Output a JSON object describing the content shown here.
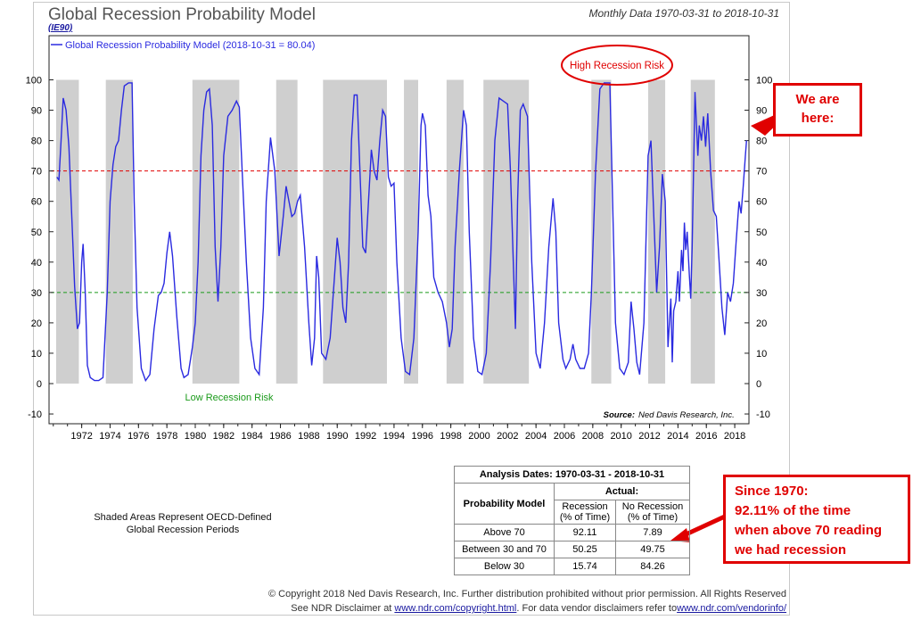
{
  "header": {
    "title": "Global Recession Probability Model",
    "code": "(IE90)",
    "subtitle": "Monthly Data 1970-03-31 to 2018-10-31"
  },
  "chart_data": {
    "type": "line",
    "legend_label": "Global Recession Probability Model (2018-10-31 = 80.04)",
    "legend_position": "top-left",
    "grid": false,
    "x_range": [
      1969.7,
      2019.0
    ],
    "x_ticks": [
      "1972",
      "1974",
      "1976",
      "1978",
      "1980",
      "1982",
      "1984",
      "1986",
      "1988",
      "1990",
      "1992",
      "1994",
      "1996",
      "1998",
      "2000",
      "2002",
      "2004",
      "2006",
      "2008",
      "2010",
      "2012",
      "2014",
      "2016",
      "2018"
    ],
    "y_range": [
      -12,
      102
    ],
    "y_ticks": [
      "-10",
      "0",
      "10",
      "20",
      "30",
      "40",
      "50",
      "60",
      "70",
      "80",
      "90",
      "100"
    ],
    "reference_lines": [
      {
        "value": 70,
        "color": "#e00000",
        "style": "dashed"
      },
      {
        "value": 30,
        "color": "#1a9a1a",
        "style": "dashed"
      }
    ],
    "shaded_periods": [
      [
        1970.2,
        1971.8
      ],
      [
        1973.7,
        1975.6
      ],
      [
        1979.8,
        1983.1
      ],
      [
        1985.7,
        1987.2
      ],
      [
        1989.0,
        1993.5
      ],
      [
        1994.7,
        1995.7
      ],
      [
        1997.7,
        1998.9
      ],
      [
        2000.3,
        2003.5
      ],
      [
        2007.9,
        2009.3
      ],
      [
        2011.9,
        2013.1
      ],
      [
        2014.9,
        2016.6
      ]
    ],
    "annotations": {
      "high_risk": "High Recession Risk",
      "low_risk": "Low Recession Risk",
      "source_label": "Source:",
      "source_text": "Ned Davis Research, Inc."
    },
    "series": [
      {
        "name": "Global Recession Probability Model",
        "color": "#2a2ae0",
        "points": [
          [
            1970.25,
            68
          ],
          [
            1970.4,
            67
          ],
          [
            1970.55,
            80
          ],
          [
            1970.7,
            94
          ],
          [
            1970.9,
            90
          ],
          [
            1971.1,
            78
          ],
          [
            1971.3,
            55
          ],
          [
            1971.5,
            32
          ],
          [
            1971.7,
            18
          ],
          [
            1971.85,
            20
          ],
          [
            1972.0,
            40
          ],
          [
            1972.1,
            46
          ],
          [
            1972.25,
            30
          ],
          [
            1972.4,
            6
          ],
          [
            1972.6,
            2
          ],
          [
            1972.9,
            1
          ],
          [
            1973.2,
            1
          ],
          [
            1973.5,
            2
          ],
          [
            1973.8,
            30
          ],
          [
            1974.0,
            60
          ],
          [
            1974.2,
            72
          ],
          [
            1974.4,
            78
          ],
          [
            1974.6,
            80
          ],
          [
            1974.8,
            90
          ],
          [
            1975.0,
            98
          ],
          [
            1975.3,
            99
          ],
          [
            1975.55,
            99
          ],
          [
            1975.7,
            60
          ],
          [
            1975.9,
            25
          ],
          [
            1976.2,
            5
          ],
          [
            1976.5,
            1
          ],
          [
            1976.8,
            3
          ],
          [
            1977.1,
            18
          ],
          [
            1977.4,
            29
          ],
          [
            1977.6,
            30
          ],
          [
            1977.8,
            33
          ],
          [
            1978.0,
            43
          ],
          [
            1978.2,
            50
          ],
          [
            1978.4,
            42
          ],
          [
            1978.7,
            22
          ],
          [
            1979.0,
            5
          ],
          [
            1979.2,
            2
          ],
          [
            1979.5,
            3
          ],
          [
            1979.8,
            12
          ],
          [
            1980.0,
            20
          ],
          [
            1980.2,
            40
          ],
          [
            1980.4,
            75
          ],
          [
            1980.6,
            90
          ],
          [
            1980.8,
            96
          ],
          [
            1981.0,
            97
          ],
          [
            1981.2,
            85
          ],
          [
            1981.4,
            45
          ],
          [
            1981.6,
            27
          ],
          [
            1981.8,
            45
          ],
          [
            1982.0,
            75
          ],
          [
            1982.3,
            88
          ],
          [
            1982.6,
            90
          ],
          [
            1982.9,
            93
          ],
          [
            1983.1,
            91
          ],
          [
            1983.3,
            70
          ],
          [
            1983.6,
            40
          ],
          [
            1983.9,
            15
          ],
          [
            1984.2,
            5
          ],
          [
            1984.5,
            3
          ],
          [
            1984.8,
            25
          ],
          [
            1985.0,
            60
          ],
          [
            1985.3,
            81
          ],
          [
            1985.6,
            70
          ],
          [
            1985.9,
            42
          ],
          [
            1986.2,
            55
          ],
          [
            1986.4,
            65
          ],
          [
            1986.6,
            60
          ],
          [
            1986.8,
            55
          ],
          [
            1987.0,
            56
          ],
          [
            1987.2,
            60
          ],
          [
            1987.4,
            62
          ],
          [
            1987.7,
            45
          ],
          [
            1988.0,
            20
          ],
          [
            1988.2,
            6
          ],
          [
            1988.4,
            15
          ],
          [
            1988.55,
            42
          ],
          [
            1988.7,
            35
          ],
          [
            1988.9,
            10
          ],
          [
            1989.2,
            8
          ],
          [
            1989.5,
            15
          ],
          [
            1989.8,
            35
          ],
          [
            1990.0,
            48
          ],
          [
            1990.2,
            40
          ],
          [
            1990.4,
            25
          ],
          [
            1990.6,
            20
          ],
          [
            1990.8,
            40
          ],
          [
            1991.0,
            80
          ],
          [
            1991.2,
            95
          ],
          [
            1991.4,
            95
          ],
          [
            1991.6,
            70
          ],
          [
            1991.8,
            45
          ],
          [
            1992.0,
            43
          ],
          [
            1992.2,
            60
          ],
          [
            1992.4,
            77
          ],
          [
            1992.6,
            70
          ],
          [
            1992.8,
            67
          ],
          [
            1993.0,
            80
          ],
          [
            1993.2,
            90
          ],
          [
            1993.4,
            88
          ],
          [
            1993.6,
            68
          ],
          [
            1993.8,
            65
          ],
          [
            1994.0,
            66
          ],
          [
            1994.2,
            40
          ],
          [
            1994.5,
            15
          ],
          [
            1994.8,
            4
          ],
          [
            1995.1,
            3
          ],
          [
            1995.4,
            15
          ],
          [
            1995.7,
            50
          ],
          [
            1995.9,
            85
          ],
          [
            1996.0,
            89
          ],
          [
            1996.2,
            85
          ],
          [
            1996.4,
            62
          ],
          [
            1996.6,
            55
          ],
          [
            1996.8,
            35
          ],
          [
            1997.1,
            30
          ],
          [
            1997.4,
            27
          ],
          [
            1997.7,
            20
          ],
          [
            1997.9,
            12
          ],
          [
            1998.1,
            18
          ],
          [
            1998.3,
            45
          ],
          [
            1998.6,
            70
          ],
          [
            1998.9,
            90
          ],
          [
            1999.1,
            85
          ],
          [
            1999.3,
            50
          ],
          [
            1999.6,
            15
          ],
          [
            1999.9,
            4
          ],
          [
            2000.2,
            3
          ],
          [
            2000.5,
            10
          ],
          [
            2000.8,
            40
          ],
          [
            2001.1,
            80
          ],
          [
            2001.4,
            94
          ],
          [
            2001.7,
            93
          ],
          [
            2002.0,
            92
          ],
          [
            2002.2,
            70
          ],
          [
            2002.4,
            40
          ],
          [
            2002.55,
            18
          ],
          [
            2002.7,
            60
          ],
          [
            2002.9,
            90
          ],
          [
            2003.1,
            92
          ],
          [
            2003.4,
            88
          ],
          [
            2003.7,
            40
          ],
          [
            2004.0,
            10
          ],
          [
            2004.3,
            5
          ],
          [
            2004.6,
            20
          ],
          [
            2004.9,
            45
          ],
          [
            2005.2,
            61
          ],
          [
            2005.4,
            50
          ],
          [
            2005.6,
            20
          ],
          [
            2005.9,
            8
          ],
          [
            2006.1,
            5
          ],
          [
            2006.4,
            8
          ],
          [
            2006.6,
            13
          ],
          [
            2006.8,
            8
          ],
          [
            2007.1,
            5
          ],
          [
            2007.4,
            5
          ],
          [
            2007.7,
            10
          ],
          [
            2007.9,
            30
          ],
          [
            2008.2,
            70
          ],
          [
            2008.5,
            97
          ],
          [
            2008.8,
            99
          ],
          [
            2009.0,
            99
          ],
          [
            2009.2,
            99
          ],
          [
            2009.4,
            60
          ],
          [
            2009.6,
            20
          ],
          [
            2009.9,
            5
          ],
          [
            2010.2,
            3
          ],
          [
            2010.5,
            7
          ],
          [
            2010.7,
            27
          ],
          [
            2010.9,
            18
          ],
          [
            2011.1,
            7
          ],
          [
            2011.3,
            3
          ],
          [
            2011.6,
            20
          ],
          [
            2011.9,
            75
          ],
          [
            2012.1,
            80
          ],
          [
            2012.3,
            55
          ],
          [
            2012.5,
            30
          ],
          [
            2012.7,
            45
          ],
          [
            2012.9,
            69
          ],
          [
            2013.1,
            60
          ],
          [
            2013.3,
            12
          ],
          [
            2013.5,
            28
          ],
          [
            2013.6,
            7
          ],
          [
            2013.7,
            24
          ],
          [
            2013.85,
            27
          ],
          [
            2014.0,
            37
          ],
          [
            2014.1,
            27
          ],
          [
            2014.25,
            44
          ],
          [
            2014.35,
            37
          ],
          [
            2014.45,
            53
          ],
          [
            2014.55,
            44
          ],
          [
            2014.65,
            50
          ],
          [
            2014.8,
            36
          ],
          [
            2014.9,
            28
          ],
          [
            2015.0,
            45
          ],
          [
            2015.2,
            96
          ],
          [
            2015.4,
            75
          ],
          [
            2015.5,
            85
          ],
          [
            2015.65,
            80
          ],
          [
            2015.8,
            88
          ],
          [
            2015.95,
            78
          ],
          [
            2016.1,
            89
          ],
          [
            2016.3,
            70
          ],
          [
            2016.5,
            57
          ],
          [
            2016.7,
            55
          ],
          [
            2016.9,
            40
          ],
          [
            2017.1,
            25
          ],
          [
            2017.3,
            16
          ],
          [
            2017.5,
            30
          ],
          [
            2017.7,
            27
          ],
          [
            2017.9,
            33
          ],
          [
            2018.1,
            47
          ],
          [
            2018.3,
            60
          ],
          [
            2018.45,
            56
          ],
          [
            2018.6,
            65
          ],
          [
            2018.75,
            75
          ],
          [
            2018.83,
            80.04
          ]
        ]
      }
    ]
  },
  "caption": {
    "line1": "Shaded Areas Represent OECD-Defined",
    "line2": "Global Recession Periods"
  },
  "analysis_table": {
    "title": "Analysis Dates: 1970-03-31 - 2018-10-31",
    "actual_header": "Actual:",
    "row_header": "Probability Model",
    "col1_header": "Recession (% of Time)",
    "col2_header": "No Recession (% of Time)",
    "rows": [
      {
        "label": "Above 70",
        "recession": "92.11",
        "no_recession": "7.89"
      },
      {
        "label": "Between 30 and 70",
        "recession": "50.25",
        "no_recession": "49.75"
      },
      {
        "label": "Below 30",
        "recession": "15.74",
        "no_recession": "84.26"
      }
    ]
  },
  "callouts": {
    "we_are_here_1": "We are",
    "we_are_here_2": "here:",
    "since_1": "Since 1970:",
    "since_2": "92.11% of the time",
    "since_3": "when above 70 reading",
    "since_4": "we had recession"
  },
  "footer": {
    "line1": "© Copyright 2018 Ned Davis Research, Inc. Further distribution prohibited without prior permission. All Rights Reserved",
    "line2_pre": "See NDR Disclaimer at ",
    "link1": "www.ndr.com/copyright.html",
    "line2_mid": ". For data vendor disclaimers refer to",
    "link2": "www.ndr.com/vendorinfo/"
  },
  "colors": {
    "series": "#2a2ae0",
    "shade": "#cfcfcf",
    "high_risk": "#e00000",
    "low_risk": "#1a9a1a",
    "callout": "#e00000"
  }
}
